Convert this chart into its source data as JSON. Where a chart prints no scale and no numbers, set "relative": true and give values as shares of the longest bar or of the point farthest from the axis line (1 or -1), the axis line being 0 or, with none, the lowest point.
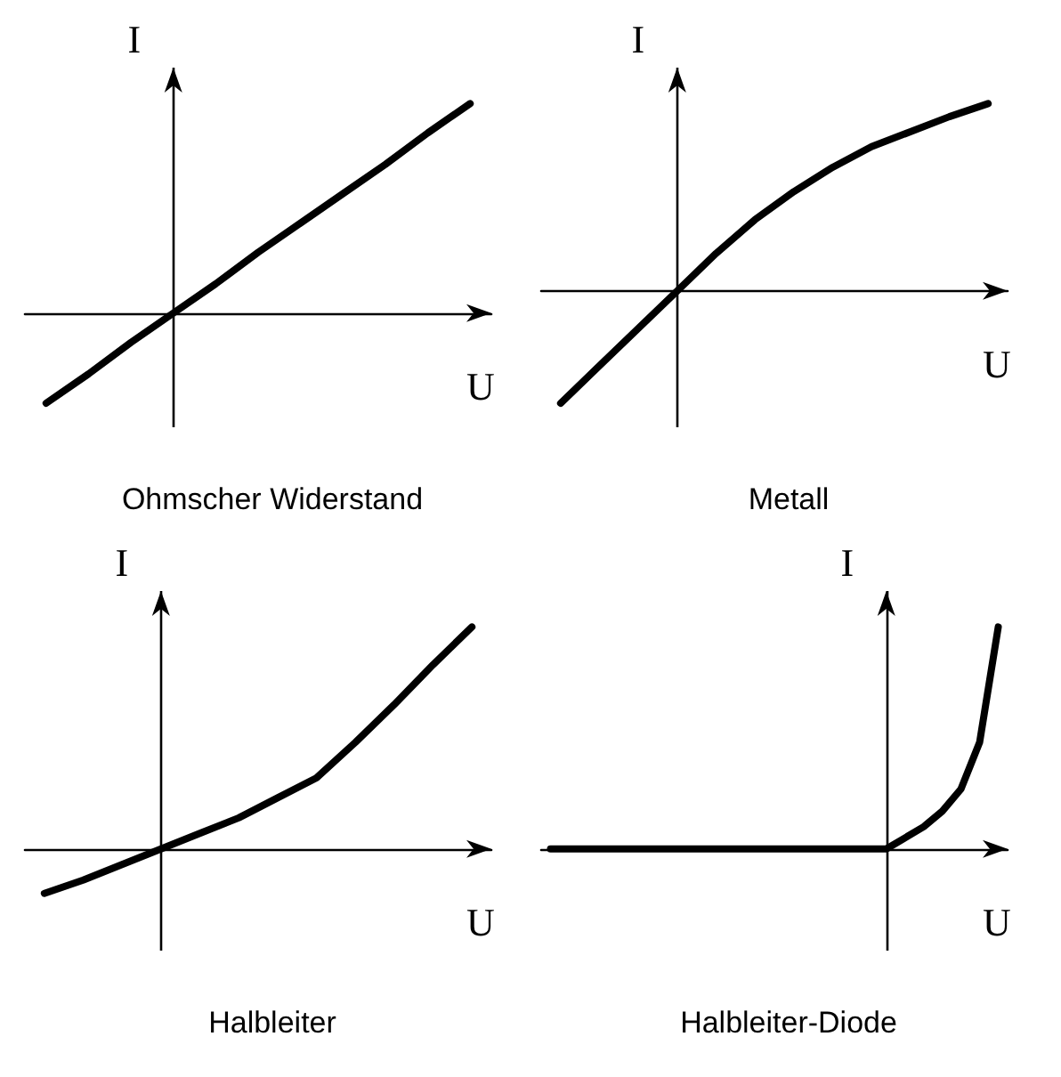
{
  "chart_data": [
    {
      "type": "line",
      "title": "Ohmscher Widerstand",
      "xlabel": "U",
      "ylabel": "I",
      "relative": true,
      "marker": "none",
      "line_style": "solid",
      "grid": false,
      "categories": [
        null,
        null,
        null,
        null,
        null,
        null,
        null,
        null,
        null,
        null,
        null
      ],
      "series": [
        {
          "color": "#000000",
          "values": [
            -0.43,
            -0.29,
            -0.14,
            0,
            0.14,
            0.29,
            0.43,
            0.57,
            0.71,
            0.86,
            1
          ]
        }
      ]
    },
    {
      "type": "line",
      "title": "Metall",
      "xlabel": "U",
      "ylabel": "I",
      "relative": true,
      "marker": "none",
      "line_style": "solid",
      "grid": false,
      "categories": [
        null,
        null,
        null,
        null,
        null,
        null,
        null,
        null,
        null,
        null,
        null,
        null
      ],
      "series": [
        {
          "color": "#000000",
          "values": [
            -0.6,
            -0.4,
            -0.2,
            0,
            0.2,
            0.38,
            0.53,
            0.66,
            0.77,
            0.85,
            0.93,
            1
          ]
        }
      ]
    },
    {
      "type": "line",
      "title": "Halbleiter",
      "xlabel": "U",
      "ylabel": "I",
      "relative": true,
      "marker": "none",
      "line_style": "solid",
      "grid": false,
      "categories": [
        null,
        null,
        null,
        null,
        null,
        null,
        null,
        null,
        null,
        null,
        null,
        null
      ],
      "series": [
        {
          "color": "#000000",
          "values": [
            -0.2,
            -0.14,
            -0.07,
            0,
            0.07,
            0.14,
            0.23,
            0.32,
            0.48,
            0.65,
            0.83,
            1
          ]
        }
      ]
    },
    {
      "type": "line",
      "title": "Halbleiter-Diode",
      "xlabel": "U",
      "ylabel": "I",
      "relative": true,
      "marker": "none",
      "line_style": "solid",
      "grid": false,
      "categories": [
        null,
        null,
        null,
        null,
        null,
        null,
        null,
        null,
        null,
        null,
        null,
        null,
        null,
        null,
        null,
        null,
        null,
        null,
        null,
        null,
        null,
        null,
        null,
        null,
        null
      ],
      "series": [
        {
          "color": "#000000",
          "values": [
            0,
            0,
            0,
            0,
            0,
            0,
            0,
            0,
            0,
            0,
            0,
            0,
            0,
            0,
            0,
            0,
            0,
            0,
            0,
            0.05,
            0.1,
            0.17,
            0.27,
            0.48,
            1
          ]
        }
      ]
    }
  ]
}
